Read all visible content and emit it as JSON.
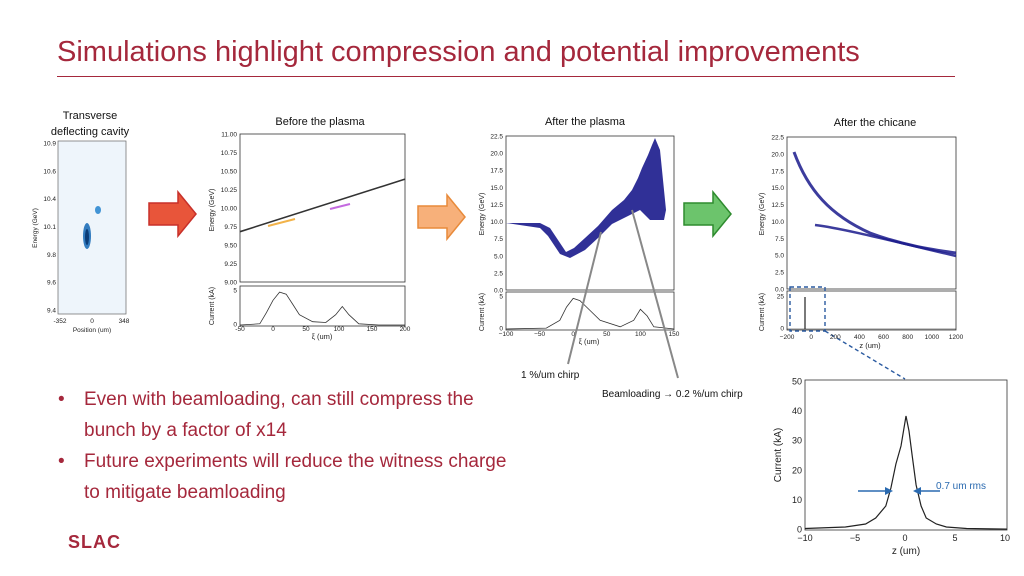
{
  "title": "Simulations highlight compression and potential improvements",
  "panels": {
    "tdc_label_1": "Transverse",
    "tdc_label_2": "deflecting cavity",
    "before_label": "Before the plasma",
    "after_plasma_label": "After the plasma",
    "after_chicane_label": "After the chicane"
  },
  "annotations": {
    "chirp": "1 %/um chirp",
    "beamloading": "Beamloading → 0.2 %/um chirp",
    "rms": "0.7 um rms"
  },
  "bullets": [
    "Even with beamloading, can still compress the bunch by a factor of x14",
    "Future experiments will reduce the witness charge to mitigate beamloading"
  ],
  "logo": "SLAC",
  "colors": {
    "accent": "#a5283c",
    "arrow_red": "#e8553a",
    "arrow_orange": "#f5a35a",
    "arrow_green": "#5cb85c",
    "scatter_blue": "#1a1a8c"
  },
  "chart_data": [
    {
      "type": "heatmap",
      "xlabel": "Position (um)",
      "ylabel": "Energy (GeV)",
      "x_ticks": [
        "-352",
        "0",
        "348"
      ],
      "y_ticks": [
        "10.9",
        "10.6",
        "10.4",
        "10.1",
        "9.8",
        "9.6",
        "9.4"
      ]
    },
    {
      "type": "scatter",
      "xlabel": "ξ (um)",
      "ylabel": "Energy (GeV)",
      "ylabel2": "Current (kA)",
      "x_ticks": [
        "-50",
        "0",
        "50",
        "100",
        "150",
        "200"
      ],
      "y_ticks": [
        "9.00",
        "9.25",
        "9.50",
        "9.75",
        "10.00",
        "10.25",
        "10.50",
        "10.75",
        "11.00"
      ],
      "y2_ticks": [
        "0",
        "5"
      ],
      "energy_line": {
        "x": [
          -50,
          200
        ],
        "y": [
          9.68,
          10.39
        ]
      },
      "current": {
        "x": [
          -50,
          -20,
          -10,
          0,
          10,
          20,
          30,
          40,
          60,
          80,
          95,
          105,
          115,
          130,
          160,
          200
        ],
        "y": [
          0,
          0.3,
          3,
          6,
          8,
          7.5,
          5,
          2.5,
          0.8,
          0.6,
          2.5,
          4.5,
          2.5,
          0.3,
          0,
          0
        ]
      }
    },
    {
      "type": "scatter",
      "xlabel": "ξ (um)",
      "ylabel": "Energy (GeV)",
      "ylabel2": "Current (kA)",
      "x_ticks": [
        "−100",
        "−50",
        "0",
        "50",
        "100",
        "150"
      ],
      "y_ticks": [
        "0.0",
        "2.5",
        "5.0",
        "7.5",
        "10.0",
        "12.5",
        "15.0",
        "17.5",
        "20.0",
        "22.5"
      ],
      "y2_ticks": [
        "0",
        "5"
      ],
      "current": {
        "x": [
          -100,
          -40,
          -20,
          -10,
          0,
          10,
          20,
          40,
          70,
          90,
          100,
          110,
          120,
          150
        ],
        "y": [
          0,
          0.2,
          2,
          5,
          7,
          6.5,
          5,
          2,
          0.5,
          2,
          4.5,
          3,
          0.5,
          0
        ]
      }
    },
    {
      "type": "scatter",
      "xlabel": "z (um)",
      "ylabel": "Energy (GeV)",
      "ylabel2": "Current (kA)",
      "x_ticks": [
        "−200",
        "0",
        "200",
        "400",
        "600",
        "800",
        "1000",
        "1200"
      ],
      "y_ticks": [
        "0.0",
        "2.5",
        "5.0",
        "7.5",
        "10.0",
        "12.5",
        "15.0",
        "17.5",
        "20.0",
        "22.5"
      ],
      "y2_ticks": [
        "0",
        "25"
      ]
    },
    {
      "type": "line",
      "xlabel": "z (um)",
      "ylabel": "Current (kA)",
      "x_ticks": [
        "−10",
        "−5",
        "0",
        "5",
        "10"
      ],
      "y_ticks": [
        "0",
        "10",
        "20",
        "30",
        "40",
        "50"
      ],
      "xlim": [
        -10,
        10
      ],
      "ylim": [
        0,
        50
      ],
      "x": [
        -10,
        -6,
        -4,
        -3,
        -2,
        -1.5,
        -1,
        -0.5,
        0,
        0.3,
        0.6,
        1,
        1.5,
        2,
        3,
        4,
        6,
        10
      ],
      "y": [
        0.5,
        1,
        2,
        4,
        8,
        14,
        22,
        28,
        38,
        33,
        25,
        15,
        8,
        4,
        2,
        1,
        0.5,
        0.3
      ]
    }
  ]
}
